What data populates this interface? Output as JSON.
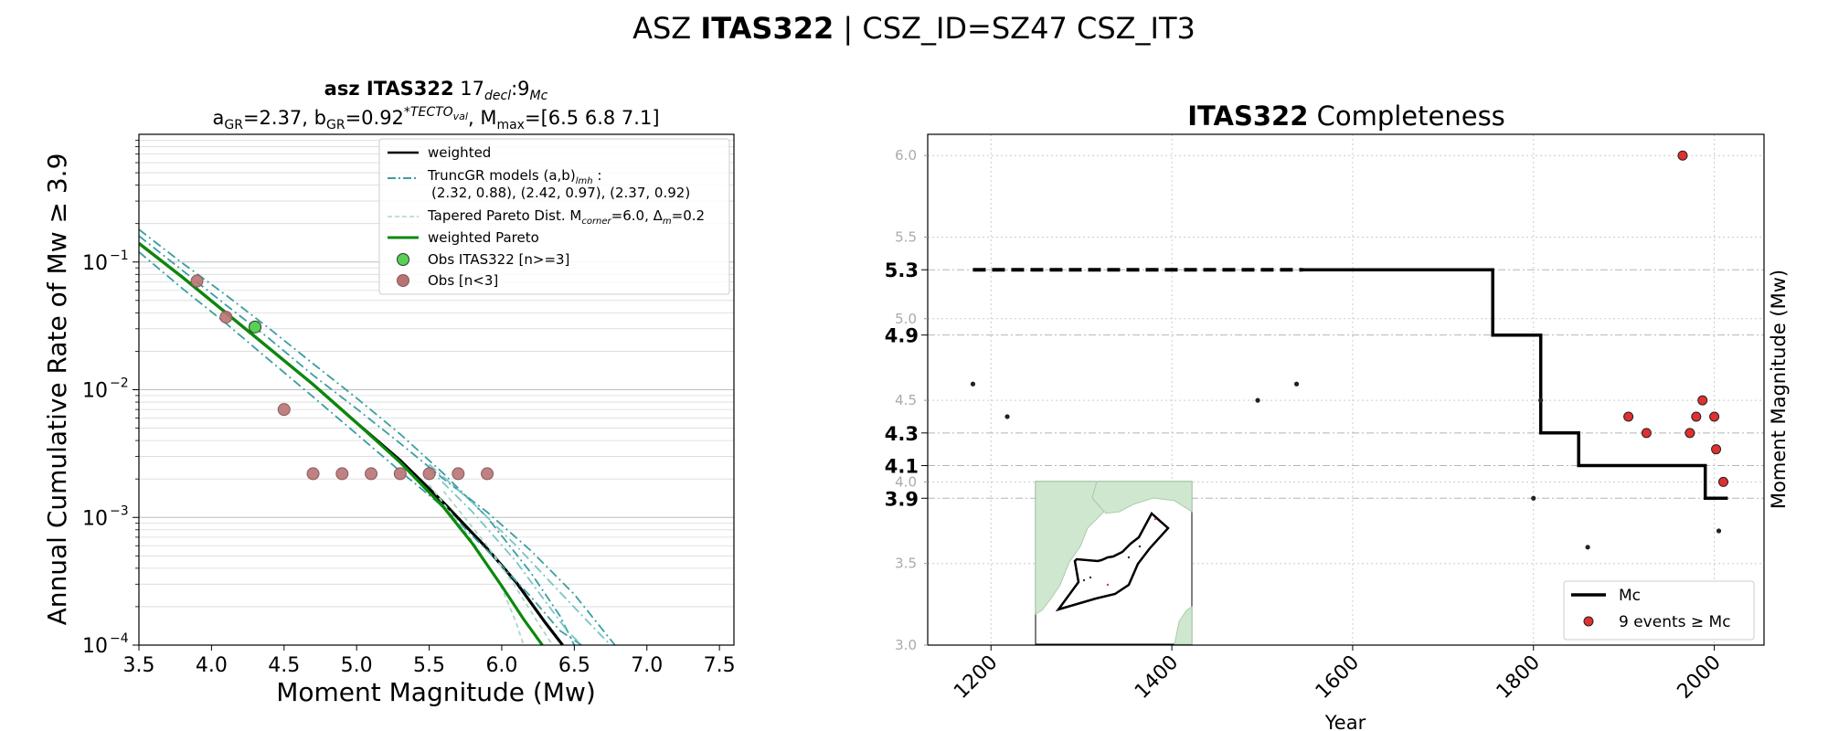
{
  "suptitle": {
    "prefix": "ASZ ",
    "bold": "ITAS322",
    "suffix": " | CSZ_ID=SZ47 CSZ_IT3"
  },
  "chart_data": [
    {
      "type": "line",
      "panel": "left",
      "title_line1": {
        "bold": "asz ITAS322",
        "text": "  17",
        "sub1": "decl",
        "mid": ":9",
        "sub2": "Mc"
      },
      "title_line2": {
        "a": "a",
        "a_sub": "GR",
        "a_val": "=2.37,  b",
        "b_sub": "GR",
        "b_val": "=0.92",
        "sup": "*TECTO",
        "sup_sub": "val",
        "rest": ", M",
        "m_sub": "max",
        "m_val": "=[6.5 6.8 7.1]"
      },
      "xlabel": "Moment Magnitude (Mw)",
      "ylabel": "Annual Cumulative Rate of Mw  ≥  3.9",
      "xlim": [
        3.5,
        7.6
      ],
      "ylim_log10": [
        -4,
        0
      ],
      "yscale": "log",
      "xticks": [
        3.5,
        4.0,
        4.5,
        5.0,
        5.5,
        6.0,
        6.5,
        7.0,
        7.5
      ],
      "xtick_labels": [
        "3.5",
        "4.0",
        "4.5",
        "5.0",
        "5.5",
        "6.0",
        "6.5",
        "7.0",
        "7.5"
      ],
      "yticks": [
        {
          "exp": -4,
          "label": "10",
          "sup": "−4"
        },
        {
          "exp": -3,
          "label": "10",
          "sup": "−3"
        },
        {
          "exp": -2,
          "label": "10",
          "sup": "−2"
        },
        {
          "exp": -1,
          "label": "10",
          "sup": "−1"
        }
      ],
      "grid": true,
      "legend": {
        "placement": "top-right",
        "entries": [
          {
            "label": "weighted",
            "style": "solid",
            "color": "#000000"
          },
          {
            "label": "TruncGR models (a,b)",
            "sub": "lmh",
            "label_tail": " :",
            "label2": "(2.32, 0.88), (2.42, 0.97), (2.37, 0.92)",
            "style": "dashdot",
            "color": "#3a9ea0"
          },
          {
            "label": "Tapered Pareto Dist. M",
            "sub": "corner",
            "label_tail": "=6.0, Δ",
            "sub2": "m",
            "label_tail2": "=0.2",
            "style": "dashed",
            "color": "#a7d8c9"
          },
          {
            "label": "weighted Pareto",
            "style": "solid",
            "color": "#0a8a0a"
          },
          {
            "label": "Obs ITAS322 [n>=3]",
            "style": "marker",
            "color": "#56d156"
          },
          {
            "label": "Obs [n<3]",
            "style": "marker",
            "color": "#b87373"
          }
        ]
      },
      "series": [
        {
          "name": "weighted",
          "color": "#000000",
          "x": [
            3.5,
            3.8,
            4.1,
            4.4,
            4.7,
            5.0,
            5.3,
            5.6,
            5.9,
            6.1,
            6.3,
            6.42
          ],
          "y": [
            0.14,
            0.076,
            0.04,
            0.021,
            0.011,
            0.0055,
            0.0028,
            0.0013,
            0.00057,
            0.00031,
            0.00015,
            0.0001
          ]
        },
        {
          "name": "TruncGR models",
          "color": "#3a9ea0",
          "dash": "dashdot",
          "x": [
            3.5,
            3.8,
            4.1,
            4.4,
            4.7,
            5.0,
            5.3,
            5.6,
            5.9,
            6.2,
            6.4,
            6.5
          ],
          "y": [
            0.18,
            0.098,
            0.055,
            0.03,
            0.016,
            0.0086,
            0.0045,
            0.0022,
            0.001,
            0.00037,
            0.00017,
            0.0001
          ]
        },
        {
          "name": "TruncGR models",
          "color": "#3a9ea0",
          "dash": "dashdot",
          "x": [
            3.5,
            3.8,
            4.1,
            4.4,
            4.7,
            5.0,
            5.3,
            5.6,
            5.9,
            6.2,
            6.5,
            6.78
          ],
          "y": [
            0.16,
            0.086,
            0.046,
            0.025,
            0.013,
            0.0071,
            0.0038,
            0.002,
            0.0011,
            0.00055,
            0.00025,
            0.0001
          ]
        },
        {
          "name": "TruncGR models",
          "color": "#3a9ea0",
          "dash": "dashdot",
          "x": [
            3.5,
            3.8,
            4.1,
            4.4,
            4.7,
            5.0,
            5.3,
            5.6,
            5.9,
            6.2,
            6.4,
            6.55
          ],
          "y": [
            0.12,
            0.062,
            0.033,
            0.017,
            0.0088,
            0.0045,
            0.0023,
            0.0012,
            0.00055,
            0.00024,
            0.00013,
            0.0001
          ]
        },
        {
          "name": "TruncGR models",
          "color": "#7cc4c4",
          "dash": "dashdot",
          "x": [
            5.5,
            5.8,
            6.1,
            6.4,
            6.6,
            6.75
          ],
          "y": [
            0.0026,
            0.0013,
            0.0006,
            0.00026,
            0.00015,
            0.0001
          ]
        },
        {
          "name": "TruncGR models",
          "color": "#7cc4c4",
          "dash": "dashdot",
          "x": [
            5.5,
            5.8,
            6.1,
            6.3,
            6.45,
            6.55
          ],
          "y": [
            0.0024,
            0.0011,
            0.00045,
            0.00022,
            0.00013,
            0.0001
          ]
        },
        {
          "name": "Tapered Pareto Dist.",
          "color": "#a7d8c9",
          "dash": "dashed",
          "x": [
            5.5,
            5.8,
            6.0,
            6.1,
            6.15
          ],
          "y": [
            0.0018,
            0.00065,
            0.00028,
            0.00015,
            0.0001
          ]
        },
        {
          "name": "Tapered Pareto Dist.",
          "color": "#a7d8c9",
          "dash": "dashed",
          "x": [
            5.6,
            5.9,
            6.1,
            6.25,
            6.35
          ],
          "y": [
            0.0016,
            0.0006,
            0.00028,
            0.00015,
            0.0001
          ]
        },
        {
          "name": "weighted Pareto",
          "color": "#0a8a0a",
          "x": [
            3.5,
            3.8,
            4.1,
            4.4,
            4.7,
            5.0,
            5.3,
            5.6,
            5.8,
            6.0,
            6.15,
            6.28
          ],
          "y": [
            0.14,
            0.076,
            0.04,
            0.021,
            0.011,
            0.0055,
            0.0027,
            0.0012,
            0.00062,
            0.00029,
            0.00016,
            0.0001
          ]
        }
      ],
      "obs_main": [
        {
          "x": 4.3,
          "y": 0.031
        }
      ],
      "obs_minor": [
        {
          "x": 3.9,
          "y": 0.071
        },
        {
          "x": 4.1,
          "y": 0.037
        },
        {
          "x": 4.5,
          "y": 0.007
        },
        {
          "x": 4.7,
          "y": 0.0022
        },
        {
          "x": 4.9,
          "y": 0.0022
        },
        {
          "x": 5.1,
          "y": 0.0022
        },
        {
          "x": 5.3,
          "y": 0.0022
        },
        {
          "x": 5.5,
          "y": 0.0022
        },
        {
          "x": 5.7,
          "y": 0.0022
        },
        {
          "x": 5.9,
          "y": 0.0022
        }
      ]
    },
    {
      "type": "scatter",
      "panel": "right",
      "title": {
        "bold": "ITAS322",
        "text": " Completeness"
      },
      "xlabel": "Year",
      "ylabel": "Moment Magnitude (Mw)",
      "xlim": [
        1130,
        2055
      ],
      "ylim": [
        3.0,
        6.13
      ],
      "xticks": [
        1200,
        1400,
        1600,
        1800,
        2000
      ],
      "xtick_labels": [
        "1200",
        "1400",
        "1600",
        "1800",
        "2000"
      ],
      "yticks_minor": [
        3.0,
        3.5,
        4.0,
        4.5,
        5.0,
        5.5,
        6.0
      ],
      "ytick_minor_labels": [
        "3.0",
        "3.5",
        "4.0",
        "4.5",
        "5.0",
        "5.5",
        "6.0"
      ],
      "yticks_mc": [
        3.9,
        4.1,
        4.3,
        4.9,
        5.3
      ],
      "ytick_mc_labels": [
        "3.9",
        "4.1",
        "4.3",
        "4.9",
        "5.3"
      ],
      "grid": true,
      "legend": {
        "placement": "bottom-right",
        "entries": [
          {
            "label": "Mc",
            "style": "line",
            "color": "#000000"
          },
          {
            "label": "9 events  ≥  Mc",
            "style": "marker",
            "color": "#e03030"
          }
        ]
      },
      "mc_dashed": {
        "x": [
          1180,
          1545
        ],
        "y": 5.3
      },
      "mc_step": [
        {
          "x": 1545,
          "y": 5.3
        },
        {
          "x": 1755,
          "y": 5.3
        },
        {
          "x": 1755,
          "y": 4.9
        },
        {
          "x": 1808,
          "y": 4.9
        },
        {
          "x": 1808,
          "y": 4.3
        },
        {
          "x": 1850,
          "y": 4.3
        },
        {
          "x": 1850,
          "y": 4.1
        },
        {
          "x": 1990,
          "y": 4.1
        },
        {
          "x": 1990,
          "y": 3.9
        },
        {
          "x": 2015,
          "y": 3.9
        }
      ],
      "events_above": [
        {
          "x": 1905,
          "y": 4.4
        },
        {
          "x": 1925,
          "y": 4.3
        },
        {
          "x": 1965,
          "y": 6.0
        },
        {
          "x": 1973,
          "y": 4.3
        },
        {
          "x": 1980,
          "y": 4.4
        },
        {
          "x": 1987,
          "y": 4.5
        },
        {
          "x": 2000,
          "y": 4.4
        },
        {
          "x": 2002,
          "y": 4.2
        },
        {
          "x": 2010,
          "y": 4.0
        }
      ],
      "events_below": [
        {
          "x": 1180,
          "y": 4.6
        },
        {
          "x": 1218,
          "y": 4.4
        },
        {
          "x": 1495,
          "y": 4.5
        },
        {
          "x": 1538,
          "y": 4.6
        },
        {
          "x": 1800,
          "y": 3.9
        },
        {
          "x": 1808,
          "y": 4.5
        },
        {
          "x": 1860,
          "y": 3.6
        },
        {
          "x": 2005,
          "y": 3.7
        }
      ],
      "inset": {
        "type": "map",
        "land_color": "#cfe6cf",
        "zone_outline": "#000000"
      }
    }
  ]
}
